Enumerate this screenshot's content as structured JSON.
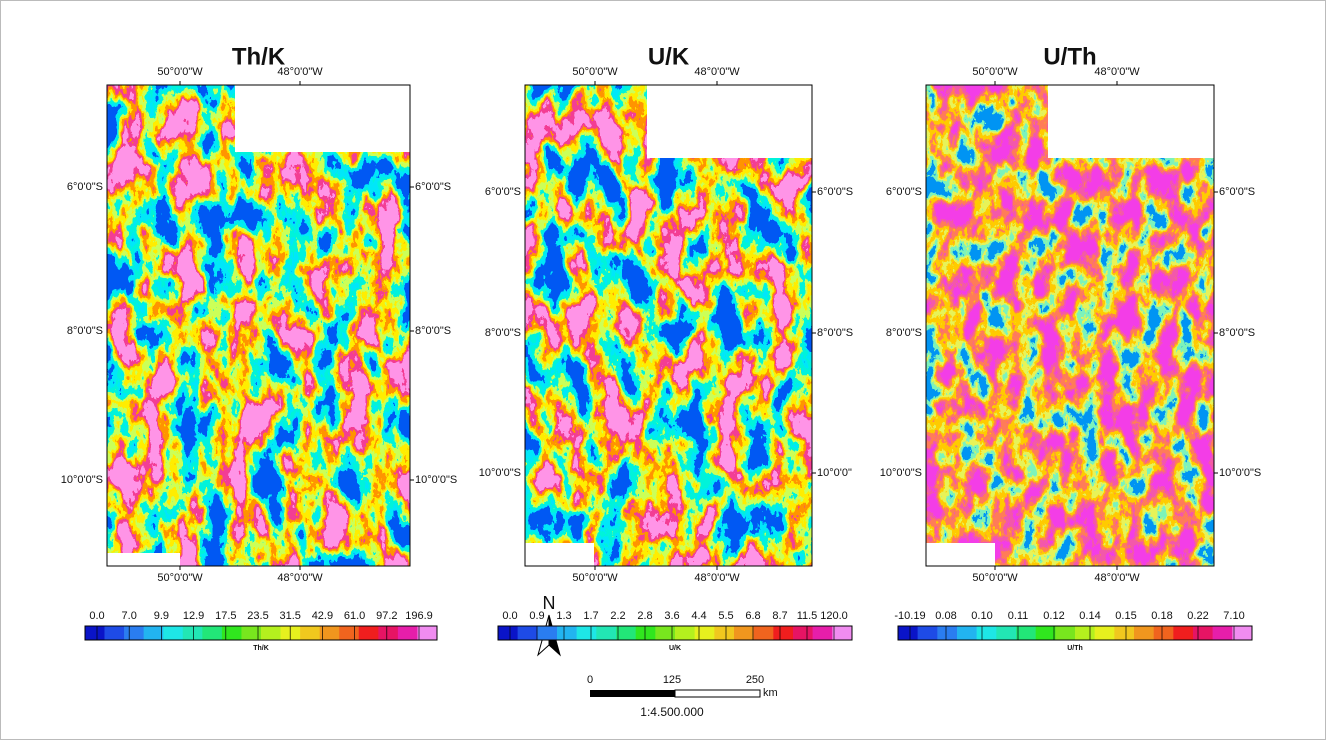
{
  "panels": [
    {
      "title": "Th/K",
      "lon_top": [
        "50°0'0\"W",
        "48°0'0\"W"
      ],
      "lat_left": [
        "6°0'0\"S",
        "8°0'0\"S",
        "10°0'0\"S"
      ],
      "lat_right": [
        "6°0'0\"S",
        "8°0'0\"S",
        "10°0'0\"S"
      ],
      "lon_bottom": [
        "50°0'0\"W",
        "48°0'0\"W"
      ],
      "colorbar": {
        "labels": [
          "0.0",
          "7.0",
          "9.9",
          "12.9",
          "17.5",
          "23.5",
          "31.5",
          "42.9",
          "61.0",
          "97.2",
          "196.9"
        ],
        "caption": "Th/K"
      }
    },
    {
      "title": "U/K",
      "lon_top": [
        "50°0'0\"W",
        "48°0'0\"W"
      ],
      "lat_left": [
        "6°0'0\"S",
        "8°0'0\"S",
        "10°0'0\"S"
      ],
      "lat_right": [
        "6°0'0\"S",
        "8°0'0\"S",
        "10°0'0\""
      ],
      "lon_bottom": [
        "50°0'0\"W",
        "48°0'0\"W"
      ],
      "colorbar": {
        "labels": [
          "0.0",
          "0.9",
          "1.3",
          "1.7",
          "2.2",
          "2.8",
          "3.6",
          "4.4",
          "5.5",
          "6.8",
          "8.7",
          "11.5",
          "120.0"
        ],
        "caption": "U/K"
      }
    },
    {
      "title": "U/Th",
      "lon_top": [
        "50°0'0\"W",
        "48°0'0\"W"
      ],
      "lat_left": [
        "6°0'0\"S",
        "8°0'0\"S",
        "10°0'0\"S"
      ],
      "lat_right": [
        "6°0'0\"S",
        "8°0'0\"S",
        "10°0'0\"S"
      ],
      "lon_bottom": [
        "50°0'0\"W",
        "48°0'0\"W"
      ],
      "colorbar": {
        "labels": [
          "-10.19",
          "0.08",
          "0.10",
          "0.11",
          "0.12",
          "0.14",
          "0.15",
          "0.18",
          "0.22",
          "7.10"
        ],
        "caption": "U/Th"
      }
    }
  ],
  "north": "N",
  "scale": {
    "labels": [
      "0",
      "125",
      "250"
    ],
    "unit": "km",
    "ratio": "1:4.500.000"
  }
}
